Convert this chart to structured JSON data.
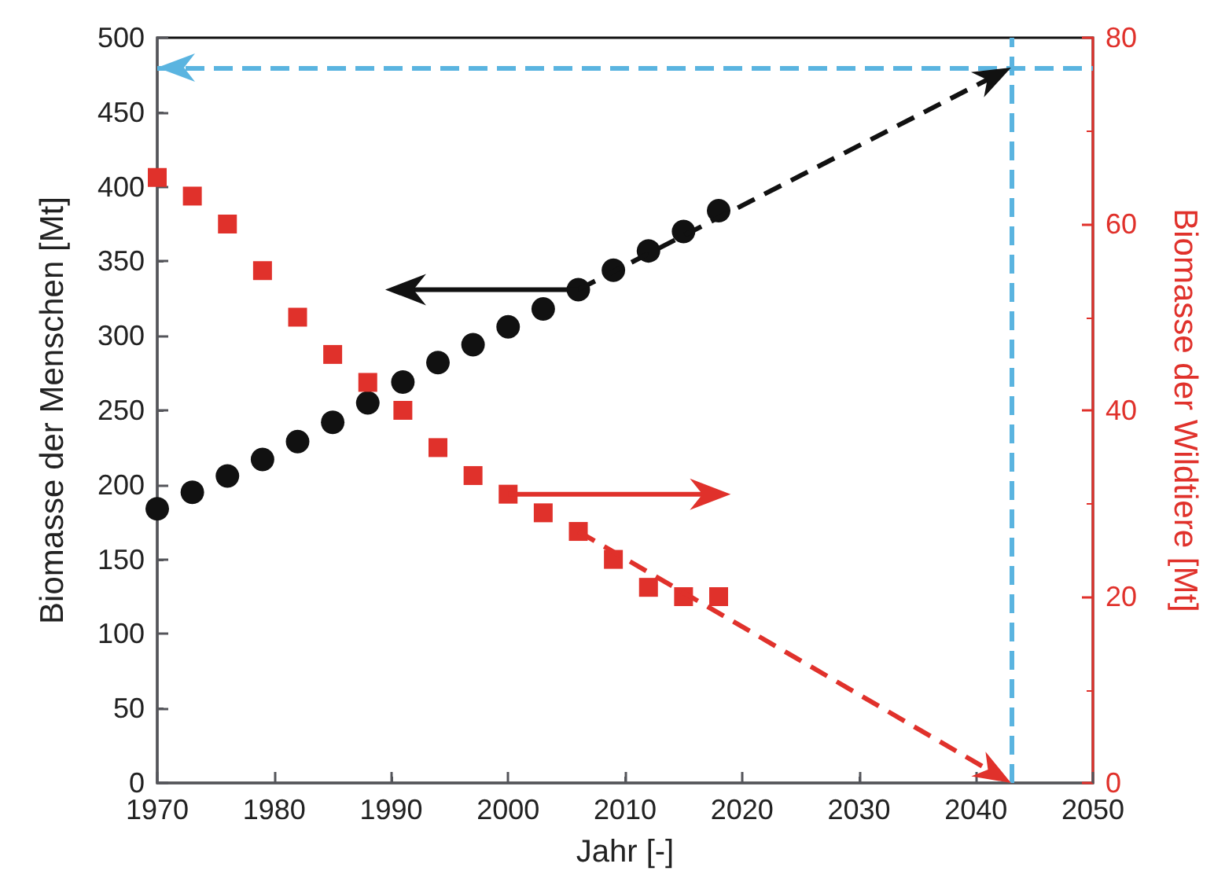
{
  "chart_data": {
    "type": "scatter",
    "xlabel": "Jahr [-]",
    "ylabel": "Biomasse der Menschen [Mt]",
    "y2label": "Biomasse der Wildtiere [Mt]",
    "x": [
      1970,
      1973,
      1976,
      1979,
      1982,
      1985,
      1988,
      1991,
      1994,
      1997,
      2000,
      2003,
      2006,
      2009,
      2012,
      2015,
      2018
    ],
    "xlim": [
      1970,
      2050
    ],
    "xticks": [
      1970,
      1980,
      1990,
      2000,
      2010,
      2020,
      2030,
      2040,
      2050
    ],
    "ylim": [
      0,
      500
    ],
    "yticks": [
      0,
      50,
      100,
      150,
      200,
      250,
      300,
      350,
      400,
      450,
      500
    ],
    "y2lim": [
      0,
      80
    ],
    "y2ticks": [
      0,
      20,
      40,
      60,
      80
    ],
    "series": [
      {
        "color": "#111111",
        "marker": "circle",
        "values": [
          184,
          195,
          206,
          217,
          229,
          242,
          255,
          269,
          282,
          294,
          306,
          318,
          331,
          344,
          357,
          370,
          384
        ]
      },
      {
        "color": "#e0312b",
        "marker": "square",
        "axis": "y2",
        "values": [
          65,
          63,
          60,
          55,
          50,
          46,
          43,
          40,
          36,
          33,
          31,
          29,
          27,
          24,
          21,
          20,
          20
        ]
      }
    ],
    "ref_lines": [
      {
        "axis": "y",
        "value": 480,
        "color": "#5ab4e0",
        "line_style": "dashed"
      },
      {
        "axis": "x",
        "value": 2043,
        "color": "#5ab4e0",
        "line_style": "dashed"
      }
    ]
  }
}
